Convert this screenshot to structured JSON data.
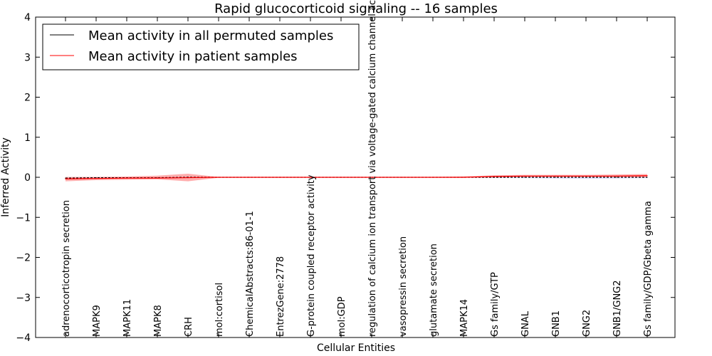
{
  "chart_data": {
    "type": "line",
    "title": "Rapid glucocorticoid signaling -- 16 samples",
    "xlabel": "Cellular Entities",
    "ylabel": "Inferred Activity",
    "ylim": [
      -4,
      4
    ],
    "yticks": [
      -4,
      -3,
      -2,
      -1,
      0,
      1,
      2,
      3,
      4
    ],
    "ytick_labels": [
      "−4",
      "−3",
      "−2",
      "−1",
      "0",
      "1",
      "2",
      "3",
      "4"
    ],
    "grid": false,
    "legend_position": "top-left",
    "categories": [
      "adrenocorticotropin secretion",
      "MAPK9",
      "MAPK11",
      "MAPK8",
      "CRH",
      "mol:cortisol",
      "ChemicalAbstracts:86-01-1",
      "EntrezGene:2778",
      "G-protein coupled receptor activity",
      "mol:GDP",
      "regulation of calcium ion transport via voltage-gated calcium channel activity",
      "vasopressin secretion",
      "glutamate secretion",
      "MAPK14",
      "Gs family/GTP",
      "GNAL",
      "GNB1",
      "GNG2",
      "GNB1/GNG2",
      "Gs family/GDP/Gbeta gamma"
    ],
    "series": [
      {
        "name": "Mean activity in all permuted samples",
        "color": "#000000",
        "values": [
          -0.02,
          -0.01,
          -0.01,
          -0.01,
          0.0,
          0.0,
          0.0,
          0.0,
          0.0,
          0.0,
          0.0,
          0.0,
          0.0,
          0.0,
          0.0,
          0.0,
          0.0,
          0.0,
          0.0,
          0.0
        ],
        "band_low": [
          -0.03,
          -0.02,
          -0.02,
          -0.02,
          -0.01,
          -0.01,
          -0.01,
          -0.01,
          -0.01,
          -0.01,
          -0.01,
          -0.01,
          -0.01,
          -0.01,
          -0.01,
          -0.02,
          -0.03,
          -0.04,
          -0.03,
          -0.02
        ],
        "band_high": [
          -0.01,
          0.0,
          0.0,
          0.0,
          0.01,
          0.01,
          0.01,
          0.01,
          0.01,
          0.01,
          0.01,
          0.01,
          0.01,
          0.01,
          0.01,
          0.01,
          0.01,
          0.01,
          0.01,
          0.01
        ],
        "band_color": "#b0b0ff"
      },
      {
        "name": "Mean activity in patient samples",
        "color": "#ff0000",
        "values": [
          -0.04,
          -0.03,
          -0.02,
          -0.02,
          -0.01,
          0.0,
          0.0,
          0.0,
          0.0,
          0.0,
          0.0,
          0.0,
          0.0,
          0.0,
          0.02,
          0.03,
          0.03,
          0.03,
          0.03,
          0.04
        ],
        "band_low": [
          -0.1,
          -0.07,
          -0.06,
          -0.05,
          -0.1,
          -0.01,
          -0.01,
          -0.01,
          -0.01,
          -0.01,
          -0.01,
          -0.01,
          -0.01,
          -0.01,
          0.0,
          0.01,
          0.01,
          0.01,
          0.01,
          0.0
        ],
        "band_high": [
          0.01,
          0.01,
          0.02,
          0.04,
          0.09,
          0.01,
          0.01,
          0.01,
          0.01,
          0.01,
          0.01,
          0.01,
          0.01,
          0.02,
          0.05,
          0.06,
          0.06,
          0.06,
          0.07,
          0.08
        ],
        "band_color": "#ff7777"
      }
    ]
  }
}
